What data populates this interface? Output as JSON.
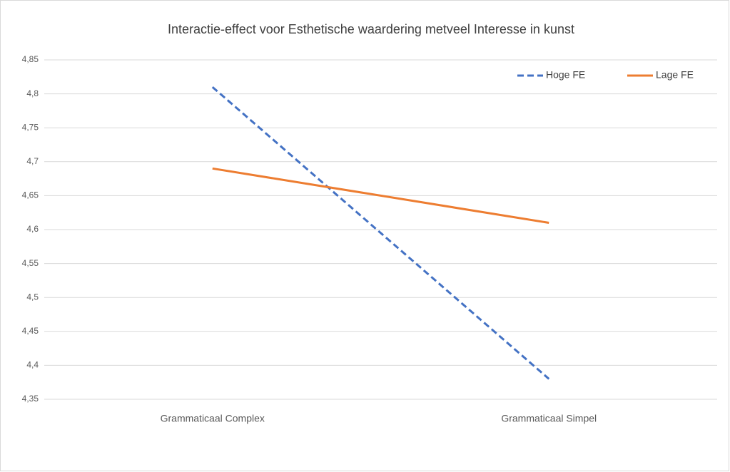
{
  "chart_data": {
    "type": "line",
    "title": "Interactie-effect voor Esthetische waardering metveel Interesse in kunst",
    "categories": [
      "Grammaticaal Complex",
      "Grammaticaal Simpel"
    ],
    "series": [
      {
        "name": "Hoge FE",
        "color": "#4472c4",
        "line_style": "dashed",
        "values": [
          4.81,
          4.38
        ]
      },
      {
        "name": "Lage FE",
        "color": "#ed7d31",
        "line_style": "solid",
        "values": [
          4.69,
          4.61
        ]
      }
    ],
    "ylim": [
      4.35,
      4.85
    ],
    "yticks": [
      {
        "value": 4.35,
        "label": "4,35"
      },
      {
        "value": 4.4,
        "label": "4,4"
      },
      {
        "value": 4.45,
        "label": "4,45"
      },
      {
        "value": 4.5,
        "label": "4,5"
      },
      {
        "value": 4.55,
        "label": "4,55"
      },
      {
        "value": 4.6,
        "label": "4,6"
      },
      {
        "value": 4.65,
        "label": "4,65"
      },
      {
        "value": 4.7,
        "label": "4,7"
      },
      {
        "value": 4.75,
        "label": "4,75"
      },
      {
        "value": 4.8,
        "label": "4,8"
      },
      {
        "value": 4.85,
        "label": "4,85"
      }
    ],
    "grid": true,
    "legend": "top-right"
  }
}
